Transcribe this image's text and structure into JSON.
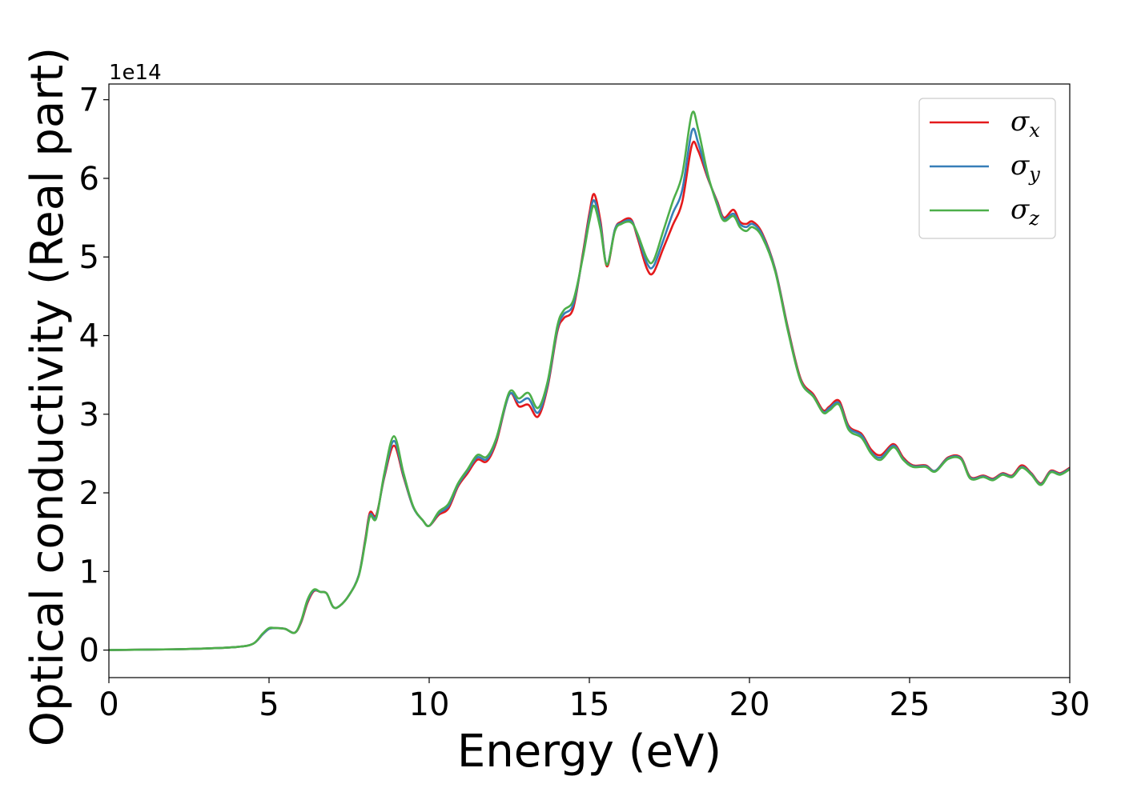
{
  "chart_data": {
    "type": "line",
    "title": "",
    "xlabel": "Energy (eV)",
    "ylabel": "Optical conductivity (Real part)",
    "y_offset_label": "1e14",
    "xlim": [
      0,
      30
    ],
    "ylim": [
      -0.35,
      7.2
    ],
    "xticks": [
      0,
      5,
      10,
      15,
      20,
      25,
      30
    ],
    "yticks": [
      0,
      1,
      2,
      3,
      4,
      5,
      6,
      7
    ],
    "grid": false,
    "legend_position": "top-right",
    "series": [
      {
        "name": "σx",
        "name_base": "σ",
        "name_sub": "x",
        "color": "#e41a1c",
        "x": [
          0,
          2,
          3,
          4,
          4.5,
          4.8,
          5,
          5.2,
          5.5,
          5.8,
          6,
          6.2,
          6.4,
          6.6,
          6.8,
          7,
          7.2,
          7.5,
          7.8,
          8,
          8.15,
          8.35,
          8.6,
          8.9,
          9.2,
          9.5,
          9.8,
          10,
          10.3,
          10.6,
          10.9,
          11.2,
          11.5,
          11.8,
          12.1,
          12.5,
          12.8,
          13.1,
          13.4,
          13.7,
          14,
          14.2,
          14.5,
          14.8,
          15,
          15.15,
          15.35,
          15.55,
          15.8,
          16,
          16.3,
          16.5,
          16.8,
          17,
          17.3,
          17.6,
          17.9,
          18.2,
          18.4,
          18.7,
          19,
          19.2,
          19.5,
          19.7,
          19.9,
          20.1,
          20.4,
          20.8,
          21.2,
          21.6,
          22,
          22.3,
          22.5,
          22.8,
          23.1,
          23.5,
          23.8,
          24.1,
          24.5,
          24.8,
          25.1,
          25.5,
          25.8,
          26.2,
          26.6,
          26.9,
          27.3,
          27.6,
          27.9,
          28.2,
          28.5,
          28.8,
          29.1,
          29.4,
          29.7,
          30
        ],
        "values": [
          0,
          0.01,
          0.02,
          0.04,
          0.08,
          0.2,
          0.27,
          0.28,
          0.27,
          0.22,
          0.35,
          0.6,
          0.75,
          0.74,
          0.72,
          0.55,
          0.56,
          0.7,
          0.95,
          1.4,
          1.75,
          1.72,
          2.2,
          2.6,
          2.2,
          1.82,
          1.65,
          1.58,
          1.72,
          1.8,
          2.08,
          2.25,
          2.42,
          2.4,
          2.65,
          3.25,
          3.1,
          3.12,
          2.97,
          3.35,
          4.05,
          4.22,
          4.35,
          5.05,
          5.55,
          5.8,
          5.45,
          4.88,
          5.35,
          5.45,
          5.48,
          5.25,
          4.85,
          4.8,
          5.1,
          5.4,
          5.7,
          6.42,
          6.35,
          6.0,
          5.7,
          5.5,
          5.6,
          5.45,
          5.42,
          5.45,
          5.3,
          4.85,
          4.1,
          3.45,
          3.25,
          3.05,
          3.1,
          3.17,
          2.85,
          2.75,
          2.55,
          2.48,
          2.62,
          2.45,
          2.35,
          2.35,
          2.28,
          2.45,
          2.45,
          2.2,
          2.22,
          2.18,
          2.25,
          2.22,
          2.35,
          2.25,
          2.12,
          2.28,
          2.25,
          2.32
        ]
      },
      {
        "name": "σy",
        "name_base": "σ",
        "name_sub": "y",
        "color": "#377eb8",
        "x": [
          0,
          2,
          3,
          4,
          4.5,
          4.8,
          5,
          5.2,
          5.5,
          5.8,
          6,
          6.2,
          6.4,
          6.6,
          6.8,
          7,
          7.2,
          7.5,
          7.8,
          8,
          8.15,
          8.35,
          8.6,
          8.9,
          9.2,
          9.5,
          9.8,
          10,
          10.3,
          10.6,
          10.9,
          11.2,
          11.5,
          11.8,
          12.1,
          12.5,
          12.8,
          13.1,
          13.4,
          13.7,
          14,
          14.2,
          14.5,
          14.8,
          15,
          15.15,
          15.35,
          15.55,
          15.8,
          16,
          16.3,
          16.5,
          16.8,
          17,
          17.3,
          17.6,
          17.9,
          18.2,
          18.4,
          18.7,
          19,
          19.2,
          19.5,
          19.7,
          19.9,
          20.1,
          20.4,
          20.8,
          21.2,
          21.6,
          22,
          22.3,
          22.5,
          22.8,
          23.1,
          23.5,
          23.8,
          24.1,
          24.5,
          24.8,
          25.1,
          25.5,
          25.8,
          26.2,
          26.6,
          26.9,
          27.3,
          27.6,
          27.9,
          28.2,
          28.5,
          28.8,
          29.1,
          29.4,
          29.7,
          30
        ],
        "values": [
          0,
          0.01,
          0.02,
          0.04,
          0.08,
          0.2,
          0.27,
          0.28,
          0.27,
          0.22,
          0.36,
          0.62,
          0.76,
          0.74,
          0.72,
          0.55,
          0.56,
          0.7,
          0.95,
          1.38,
          1.72,
          1.7,
          2.22,
          2.66,
          2.22,
          1.82,
          1.65,
          1.58,
          1.74,
          1.83,
          2.1,
          2.28,
          2.45,
          2.43,
          2.68,
          3.25,
          3.15,
          3.2,
          3.02,
          3.38,
          4.08,
          4.27,
          4.4,
          5.02,
          5.5,
          5.72,
          5.4,
          4.9,
          5.35,
          5.43,
          5.46,
          5.28,
          4.92,
          4.88,
          5.2,
          5.55,
          5.85,
          6.6,
          6.45,
          6.02,
          5.68,
          5.48,
          5.55,
          5.42,
          5.38,
          5.42,
          5.28,
          4.84,
          4.08,
          3.43,
          3.23,
          3.03,
          3.08,
          3.14,
          2.83,
          2.73,
          2.52,
          2.45,
          2.6,
          2.43,
          2.34,
          2.34,
          2.28,
          2.44,
          2.44,
          2.19,
          2.21,
          2.17,
          2.24,
          2.21,
          2.33,
          2.24,
          2.11,
          2.27,
          2.24,
          2.31
        ]
      },
      {
        "name": "σz",
        "name_base": "σ",
        "name_sub": "z",
        "color": "#4daf4a",
        "x": [
          0,
          2,
          3,
          4,
          4.5,
          4.8,
          5,
          5.2,
          5.5,
          5.8,
          6,
          6.2,
          6.4,
          6.6,
          6.8,
          7,
          7.2,
          7.5,
          7.8,
          8,
          8.15,
          8.35,
          8.6,
          8.9,
          9.2,
          9.5,
          9.8,
          10,
          10.3,
          10.6,
          10.9,
          11.2,
          11.5,
          11.8,
          12.1,
          12.5,
          12.8,
          13.1,
          13.4,
          13.7,
          14,
          14.2,
          14.5,
          14.8,
          15,
          15.15,
          15.35,
          15.55,
          15.8,
          16,
          16.3,
          16.5,
          16.8,
          17,
          17.3,
          17.6,
          17.9,
          18.2,
          18.4,
          18.7,
          19,
          19.2,
          19.5,
          19.7,
          19.9,
          20.1,
          20.4,
          20.8,
          21.2,
          21.6,
          22,
          22.3,
          22.5,
          22.8,
          23.1,
          23.5,
          23.8,
          24.1,
          24.5,
          24.8,
          25.1,
          25.5,
          25.8,
          26.2,
          26.6,
          26.9,
          27.3,
          27.6,
          27.9,
          28.2,
          28.5,
          28.8,
          29.1,
          29.4,
          29.7,
          30
        ],
        "values": [
          0,
          0.01,
          0.02,
          0.04,
          0.08,
          0.21,
          0.28,
          0.28,
          0.27,
          0.22,
          0.37,
          0.64,
          0.77,
          0.74,
          0.72,
          0.55,
          0.56,
          0.7,
          0.94,
          1.36,
          1.7,
          1.68,
          2.25,
          2.72,
          2.25,
          1.83,
          1.65,
          1.58,
          1.76,
          1.86,
          2.12,
          2.3,
          2.48,
          2.46,
          2.7,
          3.28,
          3.2,
          3.27,
          3.08,
          3.42,
          4.12,
          4.32,
          4.45,
          5.0,
          5.45,
          5.65,
          5.35,
          4.9,
          5.33,
          5.42,
          5.44,
          5.3,
          4.98,
          4.95,
          5.32,
          5.7,
          6.05,
          6.82,
          6.62,
          6.05,
          5.65,
          5.46,
          5.52,
          5.38,
          5.33,
          5.38,
          5.25,
          4.82,
          4.06,
          3.42,
          3.22,
          3.02,
          3.05,
          3.12,
          2.8,
          2.7,
          2.5,
          2.42,
          2.58,
          2.42,
          2.33,
          2.33,
          2.27,
          2.43,
          2.43,
          2.18,
          2.2,
          2.16,
          2.23,
          2.2,
          2.32,
          2.23,
          2.1,
          2.26,
          2.23,
          2.3
        ]
      }
    ]
  }
}
